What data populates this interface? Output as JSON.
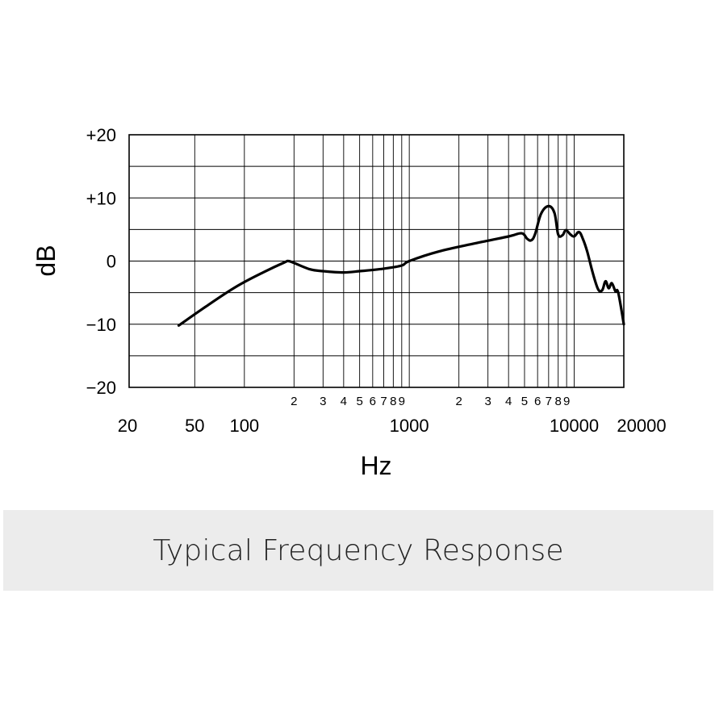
{
  "chart_data": {
    "type": "line",
    "xscale": "log",
    "xlim": [
      20,
      20000
    ],
    "ylim": [
      -20,
      20
    ],
    "ylabel": "dB",
    "xlabel": "Hz",
    "grid": true,
    "y_ticks": [
      {
        "value": 20,
        "label": "+20"
      },
      {
        "value": 10,
        "label": "+10"
      },
      {
        "value": 0,
        "label": "0"
      },
      {
        "value": -10,
        "label": "−10"
      },
      {
        "value": -20,
        "label": "−20"
      }
    ],
    "y_minor_grid": [
      15,
      5,
      -5,
      -15
    ],
    "x_major_ticks": [
      {
        "value": 20,
        "label": "20"
      },
      {
        "value": 50,
        "label": "50"
      },
      {
        "value": 100,
        "label": "100"
      },
      {
        "value": 1000,
        "label": "1000"
      },
      {
        "value": 10000,
        "label": "10000"
      },
      {
        "value": 20000,
        "label": "20000"
      }
    ],
    "x_minor_ticks": [
      {
        "value": 200,
        "label": "2"
      },
      {
        "value": 300,
        "label": "3"
      },
      {
        "value": 400,
        "label": "4"
      },
      {
        "value": 500,
        "label": "5"
      },
      {
        "value": 600,
        "label": "6"
      },
      {
        "value": 700,
        "label": "7"
      },
      {
        "value": 800,
        "label": "8"
      },
      {
        "value": 900,
        "label": "9"
      },
      {
        "value": 2000,
        "label": "2"
      },
      {
        "value": 3000,
        "label": "3"
      },
      {
        "value": 4000,
        "label": "4"
      },
      {
        "value": 5000,
        "label": "5"
      },
      {
        "value": 6000,
        "label": "6"
      },
      {
        "value": 7000,
        "label": "7"
      },
      {
        "value": 8000,
        "label": "8"
      },
      {
        "value": 9000,
        "label": "9"
      }
    ],
    "series": [
      {
        "points": [
          [
            40,
            -10.2
          ],
          [
            60,
            -7
          ],
          [
            90,
            -4
          ],
          [
            130,
            -1.8
          ],
          [
            175,
            -0.2
          ],
          [
            185,
            0
          ],
          [
            200,
            -0.3
          ],
          [
            250,
            -1.3
          ],
          [
            300,
            -1.6
          ],
          [
            400,
            -1.8
          ],
          [
            500,
            -1.6
          ],
          [
            700,
            -1.2
          ],
          [
            900,
            -0.7
          ],
          [
            1000,
            0
          ],
          [
            1500,
            1.5
          ],
          [
            2500,
            2.8
          ],
          [
            4000,
            3.9
          ],
          [
            4800,
            4.4
          ],
          [
            5200,
            3.5
          ],
          [
            5500,
            3.3
          ],
          [
            5800,
            4.3
          ],
          [
            6300,
            7.5
          ],
          [
            7000,
            8.7
          ],
          [
            7600,
            7.6
          ],
          [
            8000,
            4.2
          ],
          [
            8500,
            4.1
          ],
          [
            8900,
            4.9
          ],
          [
            9500,
            4.2
          ],
          [
            10000,
            3.9
          ],
          [
            10700,
            4.6
          ],
          [
            11300,
            3.5
          ],
          [
            12000,
            1.5
          ],
          [
            13000,
            -2
          ],
          [
            14000,
            -4.5
          ],
          [
            14800,
            -4.6
          ],
          [
            15500,
            -3.2
          ],
          [
            16200,
            -4.3
          ],
          [
            16900,
            -3.5
          ],
          [
            17800,
            -4.8
          ],
          [
            18500,
            -5
          ],
          [
            20000,
            -10
          ]
        ]
      }
    ]
  },
  "caption": "Typical Frequency Response"
}
